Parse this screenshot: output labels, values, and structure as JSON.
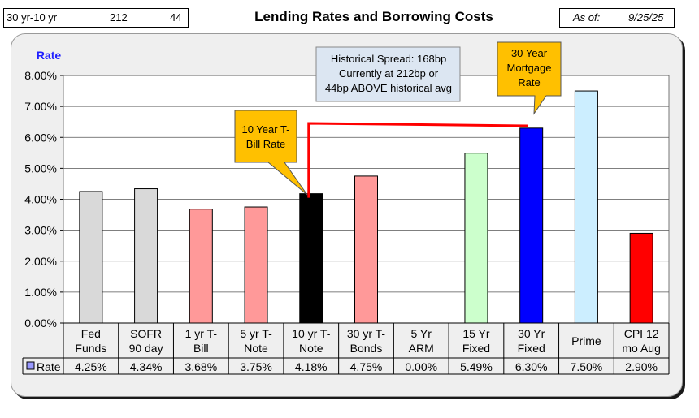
{
  "header": {
    "spread_label": "30 yr-10 yr",
    "spread_value": "212",
    "spread_diff": "44",
    "title": "Lending Rates and Borrowing Costs",
    "asof_label": "As of:",
    "asof_date": "9/25/25"
  },
  "chart_data": {
    "type": "bar",
    "title": "Lending Rates and Borrowing Costs",
    "ylabel": "Rate",
    "ylim": [
      0,
      8
    ],
    "yticks": [
      "0.00%",
      "1.00%",
      "2.00%",
      "3.00%",
      "4.00%",
      "5.00%",
      "6.00%",
      "7.00%",
      "8.00%"
    ],
    "categories": [
      [
        "Fed",
        "Funds"
      ],
      [
        "SOFR",
        "90 day"
      ],
      [
        "1 yr  T-",
        "Bill"
      ],
      [
        "5 yr T-",
        "Note"
      ],
      [
        "10 yr T-",
        "Note"
      ],
      [
        "30 yr T-",
        "Bonds"
      ],
      [
        "5 Yr",
        "ARM"
      ],
      [
        "15 Yr",
        "Fixed"
      ],
      [
        "30 Yr",
        "Fixed"
      ],
      [
        "Prime"
      ],
      [
        "CPI 12",
        "mo Aug"
      ]
    ],
    "series": [
      {
        "name": "Rate",
        "values": [
          4.25,
          4.34,
          3.68,
          3.75,
          4.18,
          4.75,
          0.0,
          5.49,
          6.3,
          7.5,
          2.9
        ],
        "labels": [
          "4.25%",
          "4.34%",
          "3.68%",
          "3.75%",
          "4.18%",
          "4.75%",
          "0.00%",
          "5.49%",
          "6.30%",
          "7.50%",
          "2.90%"
        ]
      }
    ],
    "bar_colors": [
      "#d9d9d9",
      "#d9d9d9",
      "#ff9999",
      "#ff9999",
      "#000000",
      "#ff9999",
      "#d9d9d9",
      "#ccffcc",
      "#0000ff",
      "#cceeff",
      "#ff0000"
    ],
    "legend_color": "#9999ff",
    "annotations": {
      "spread_box": [
        "Historical Spread: 168bp",
        "Currently at 212bp  or",
        "44bp ABOVE historical avg"
      ],
      "callout_10yr": [
        "10 Year T-",
        "Bill Rate"
      ],
      "callout_30yr": [
        "30 Year",
        "Mortgage",
        "Rate"
      ]
    }
  }
}
